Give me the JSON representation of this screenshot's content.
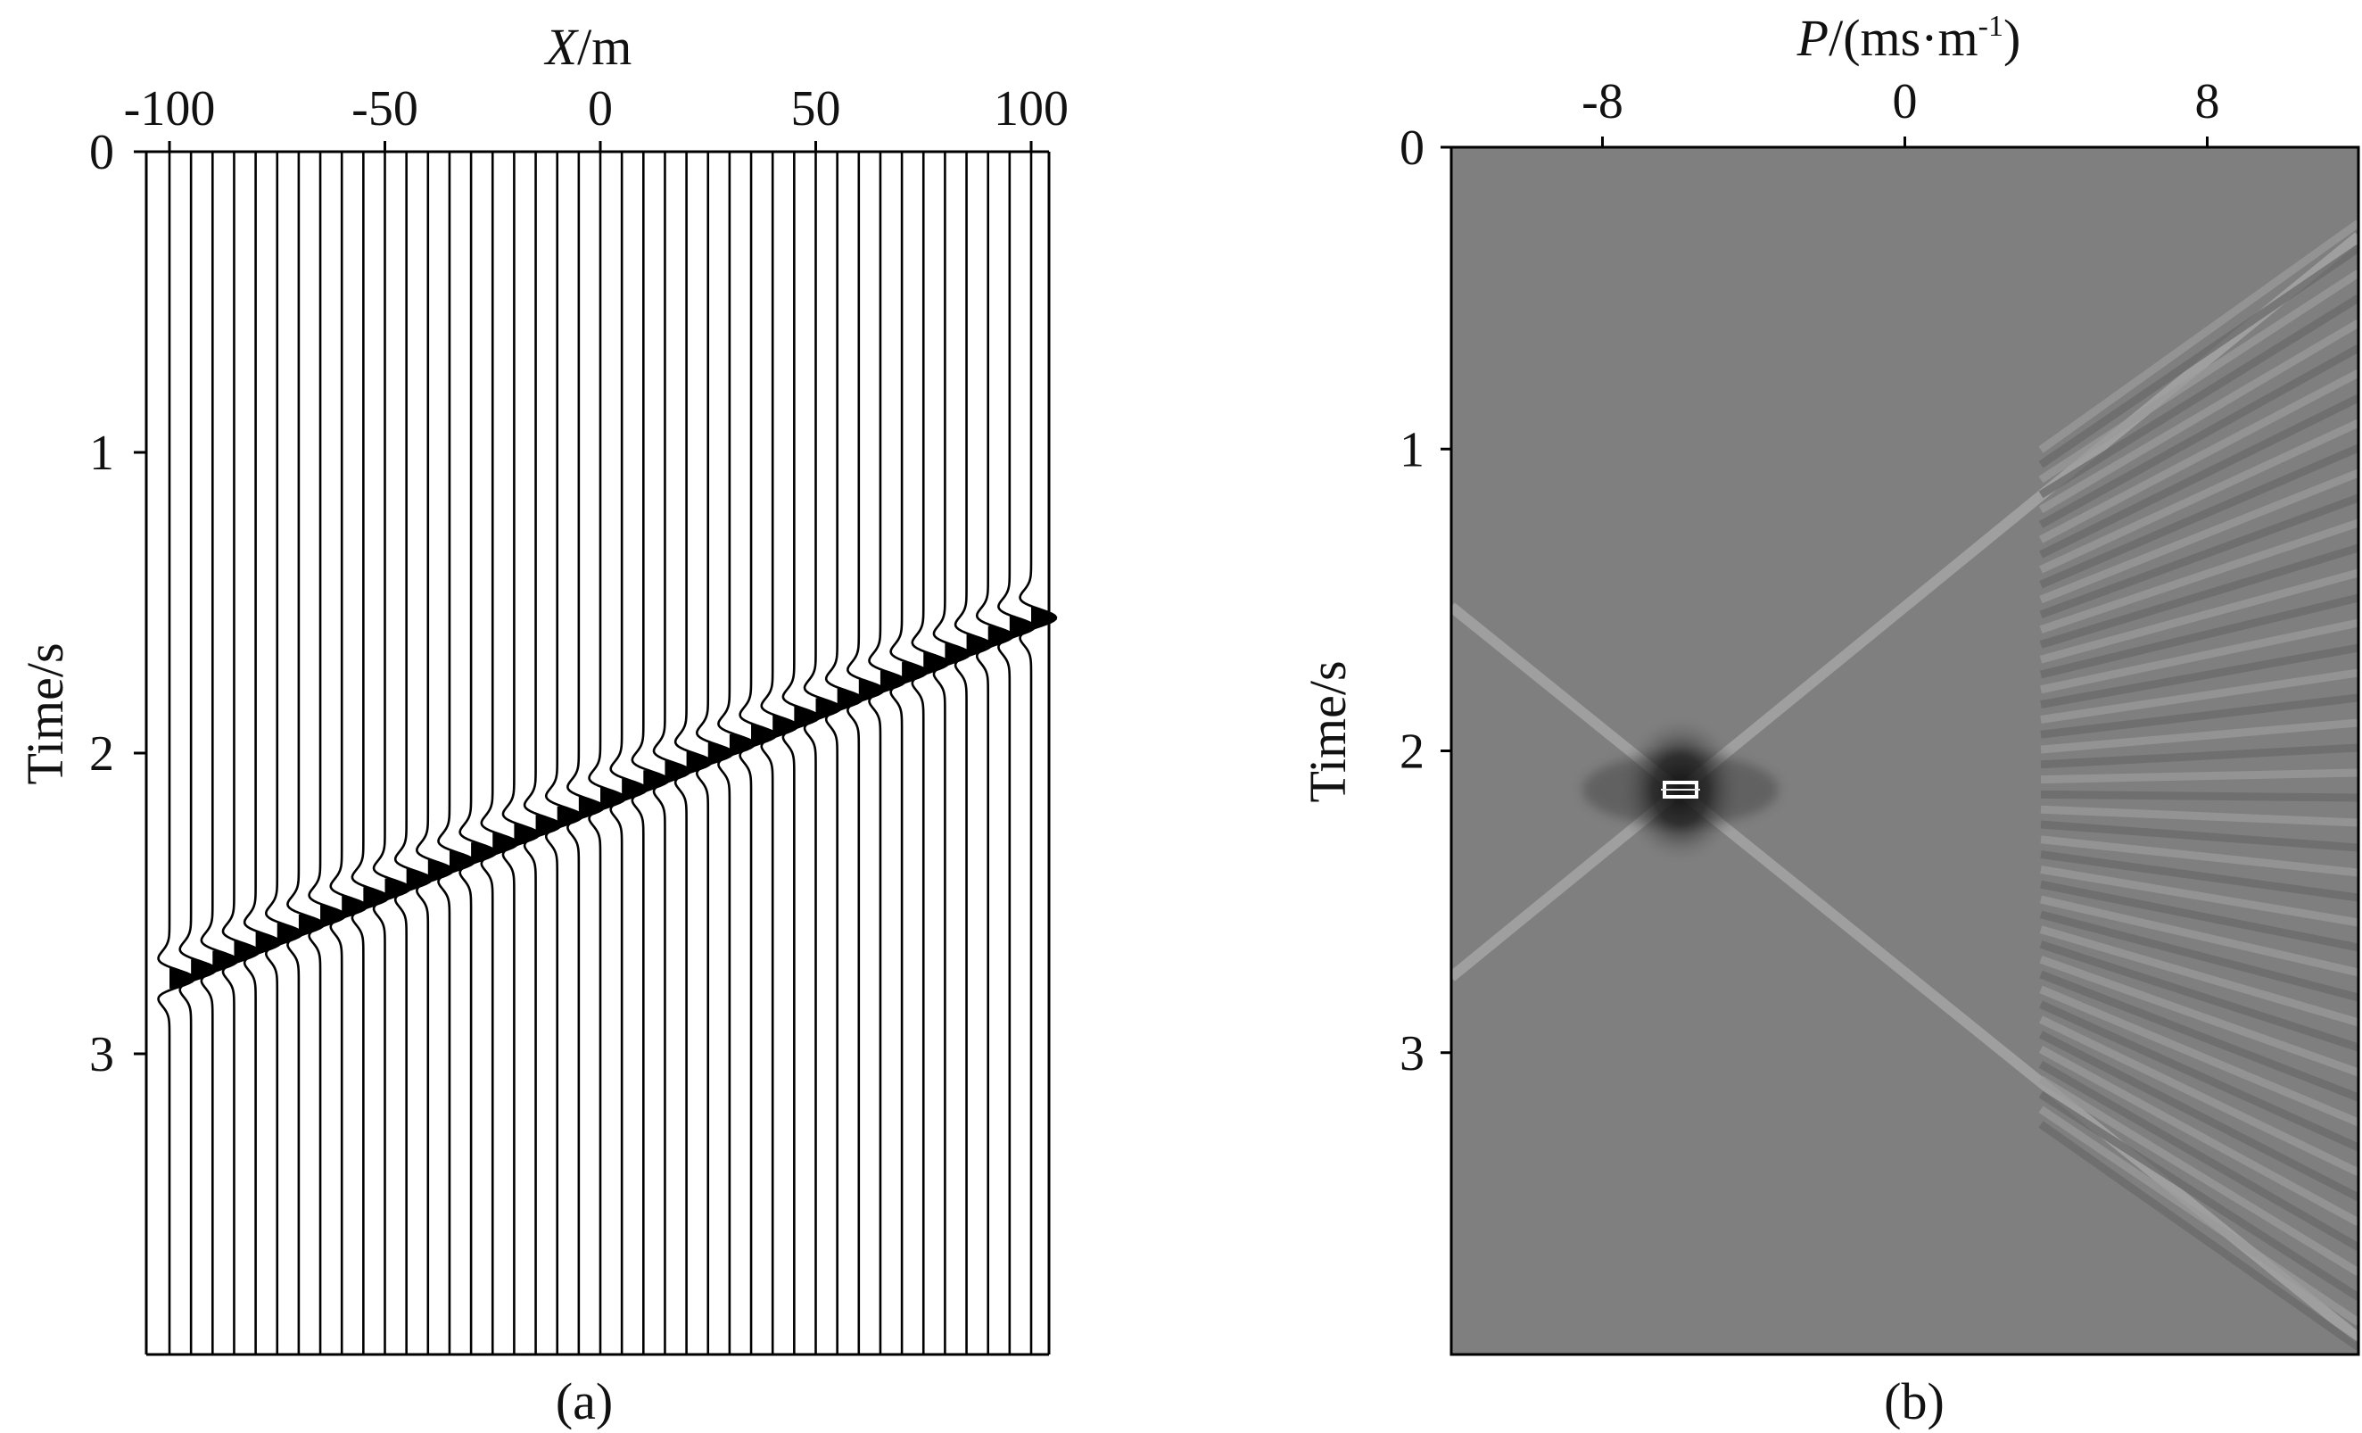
{
  "chart_data": [
    {
      "panel": "(a)",
      "type": "line",
      "style": "seismic wiggle traces with filled positive lobes",
      "xlabel_italic": "X",
      "xlabel_rest": "/m",
      "ylabel": "Time/s",
      "x_ticks": [
        "-100",
        "-50",
        "0",
        "50",
        "100"
      ],
      "y_ticks": [
        "0",
        "1",
        "2",
        "3"
      ],
      "xlim": [
        -100,
        100
      ],
      "ylim": [
        0,
        4
      ],
      "trace_count": 41,
      "trace_spacing_m": 5,
      "event": {
        "description": "linear event",
        "t_at_x_min": 2.75,
        "t_at_x_max": 1.55,
        "x_range": [
          -100,
          100
        ]
      }
    },
    {
      "panel": "(b)",
      "type": "heatmap",
      "style": "grayscale tau-p transform",
      "xlabel_italic": "P",
      "xlabel_rest": "/(ms·m",
      "xlabel_sup": "-1",
      "xlabel_close": ")",
      "ylabel": "Time/s",
      "x_ticks": [
        "-8",
        "0",
        "8"
      ],
      "y_ticks": [
        "0",
        "1",
        "2",
        "3"
      ],
      "xlim": [
        -12,
        12
      ],
      "ylim": [
        0,
        4
      ],
      "focus_point": {
        "p": -6,
        "t": 2.13
      },
      "background_color": "#7f7f7f"
    }
  ],
  "labels": {
    "panel_a": "(a)",
    "panel_b": "(b)"
  }
}
